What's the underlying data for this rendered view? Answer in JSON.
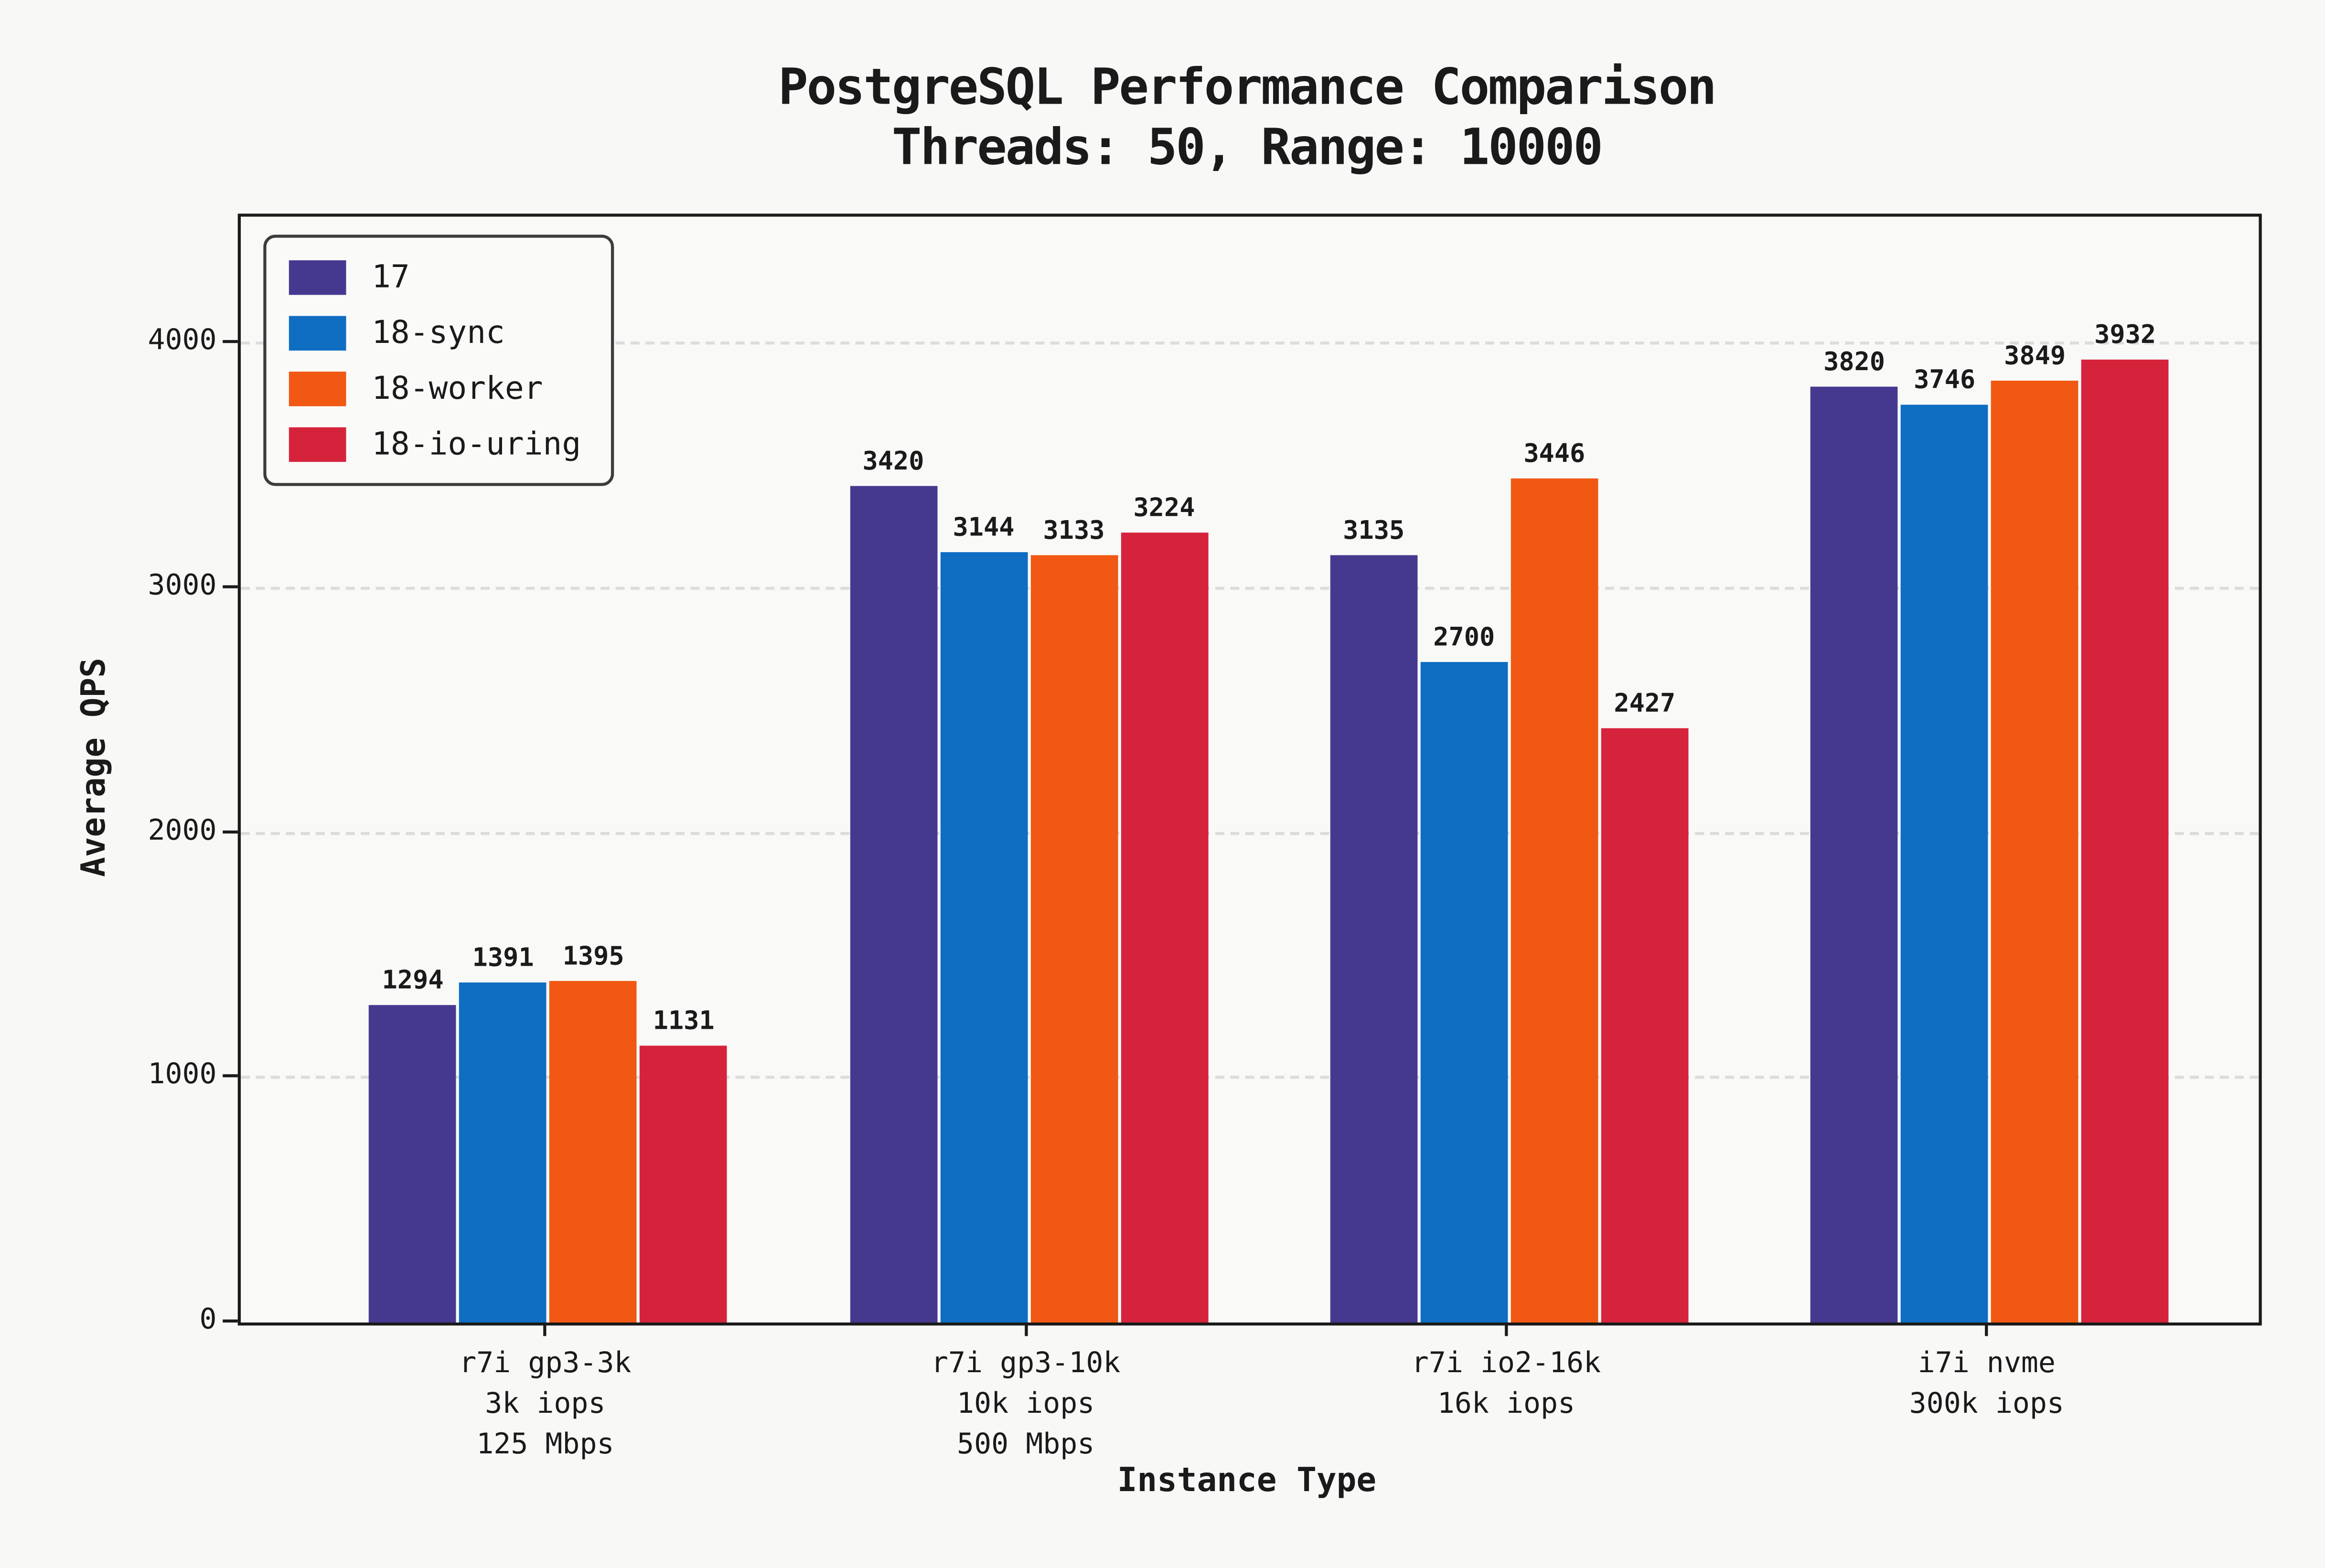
{
  "figure": {
    "background_color": "#f8f8f7",
    "spine_color": "#1a1a1a",
    "gridline_color": "#dcdcdc",
    "text_color": "#1a1a1a"
  },
  "chart_data": {
    "type": "bar",
    "title": "PostgreSQL Performance Comparison",
    "subtitle": "Threads: 50, Range: 10000",
    "xlabel": "Instance Type",
    "ylabel": "Average QPS",
    "ylim": [
      0,
      4517
    ],
    "yticks": [
      0,
      1000,
      2000,
      3000,
      4000
    ],
    "grid": "horizontal-dashed",
    "legend_position": "upper-left",
    "categories": [
      {
        "lines": [
          "r7i gp3-3k",
          "3k iops",
          "125 Mbps"
        ]
      },
      {
        "lines": [
          "r7i gp3-10k",
          "10k iops",
          "500 Mbps"
        ]
      },
      {
        "lines": [
          "r7i io2-16k",
          "16k iops"
        ]
      },
      {
        "lines": [
          "i7i nvme",
          "300k iops"
        ]
      }
    ],
    "series": [
      {
        "name": "17",
        "color": "#45398F",
        "values": [
          1294,
          3420,
          3135,
          3820
        ]
      },
      {
        "name": "18-sync",
        "color": "#0F6DC2",
        "values": [
          1391,
          3144,
          2700,
          3746
        ]
      },
      {
        "name": "18-worker",
        "color": "#F15813",
        "values": [
          1395,
          3133,
          3446,
          3849
        ]
      },
      {
        "name": "18-io-uring",
        "color": "#D6233C",
        "values": [
          1131,
          3224,
          2427,
          3932
        ]
      }
    ]
  }
}
